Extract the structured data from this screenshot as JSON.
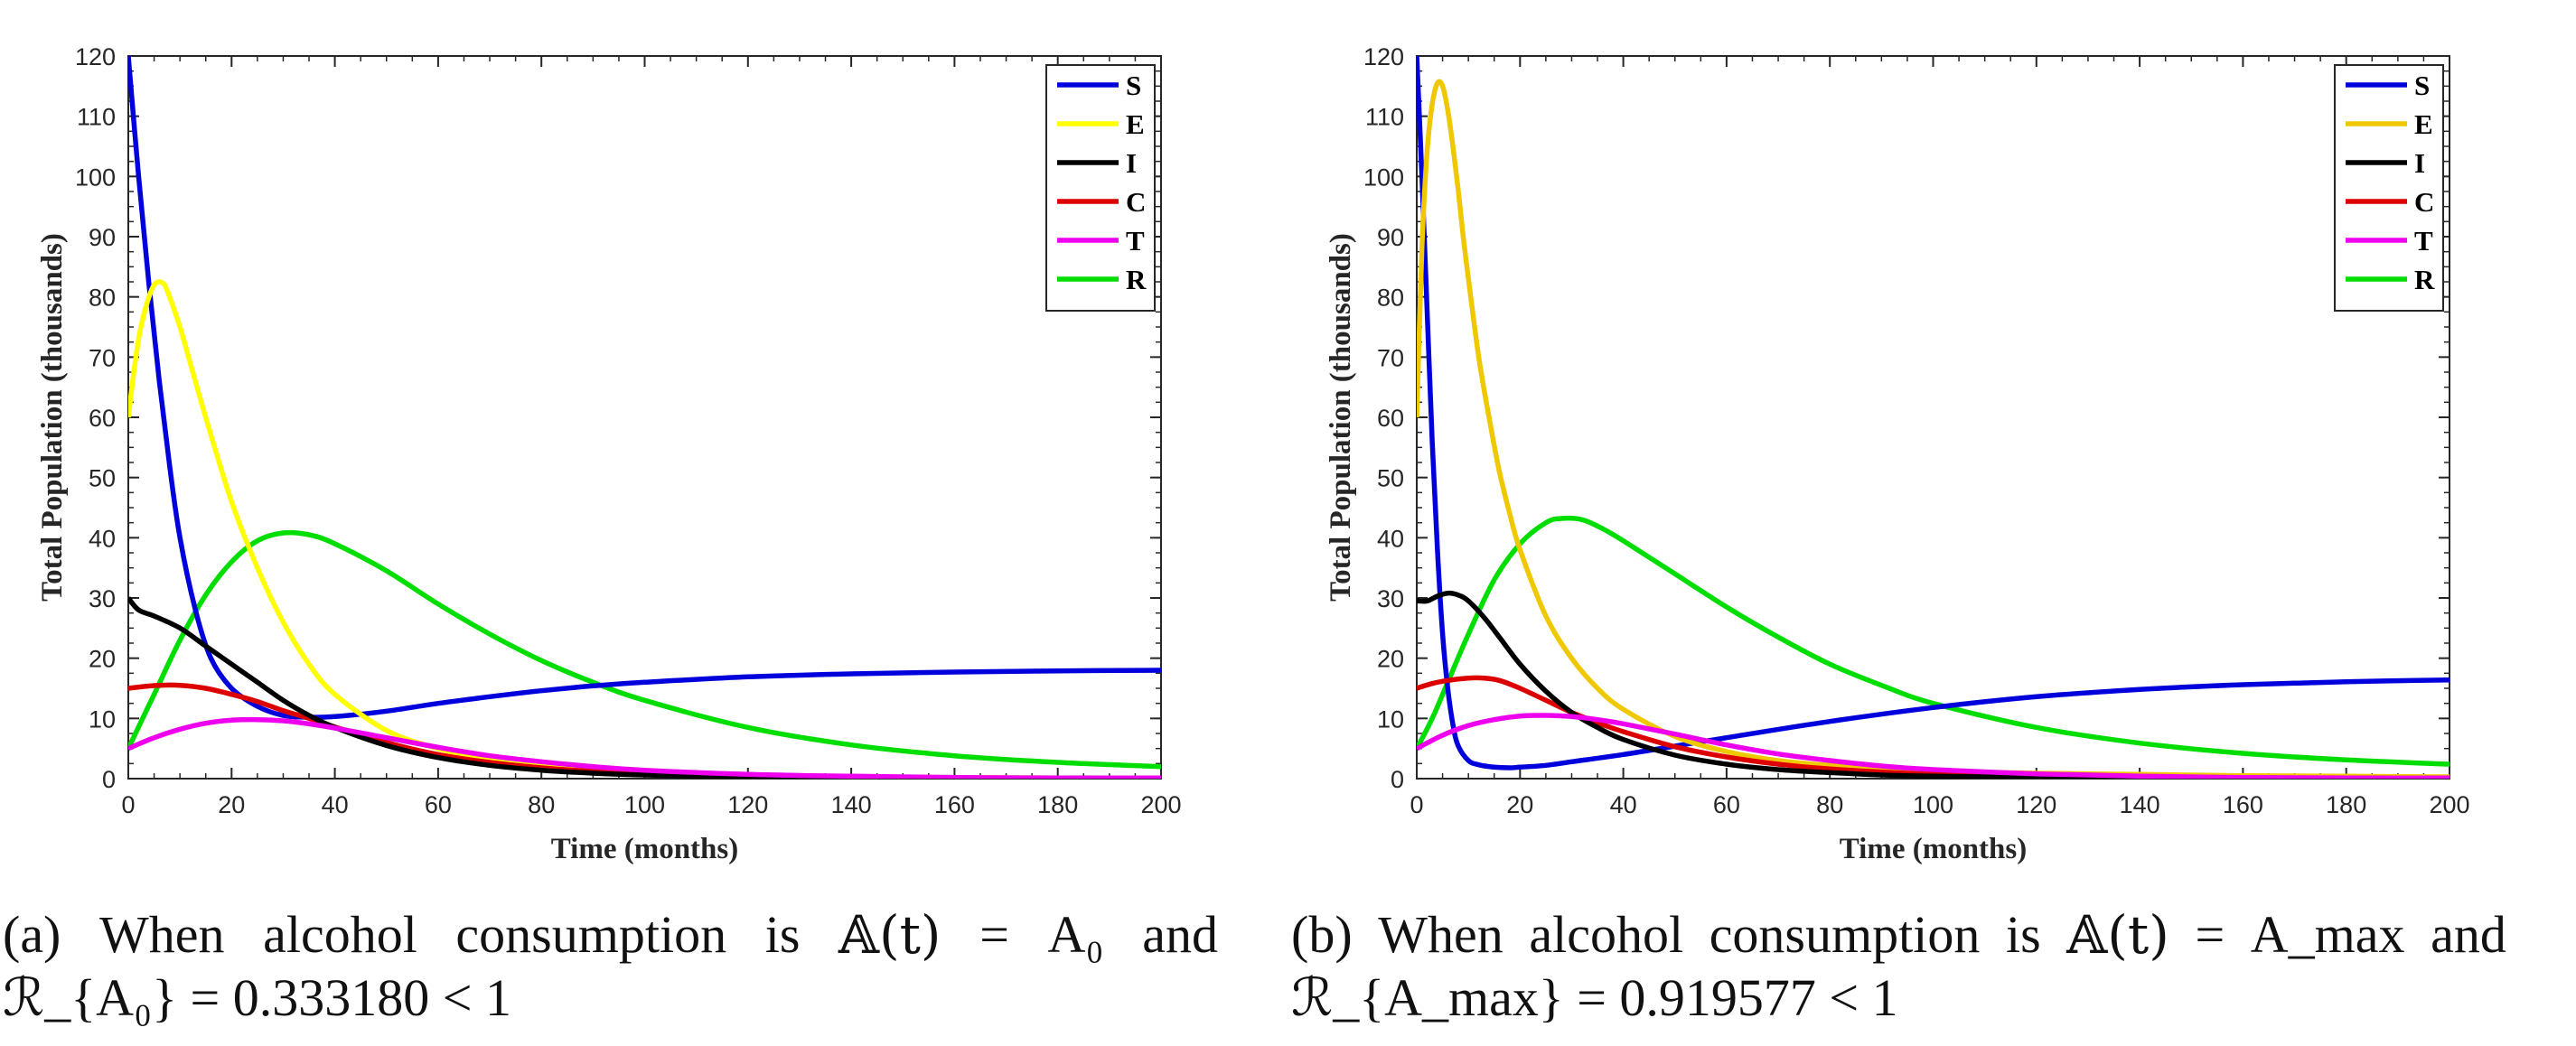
{
  "panels": [
    {
      "id": "a",
      "caption_prefix": "(a)",
      "caption_words": [
        "When",
        "alcohol",
        "consumption",
        "is",
        "𝔸(t)",
        "=",
        "A₀",
        "and"
      ],
      "caption_line2": "ℛ_{A₀} = 0.333180 < 1"
    },
    {
      "id": "b",
      "caption_prefix": "(b)",
      "caption_words": [
        "When",
        "alcohol",
        "consumption",
        "is",
        "𝔸(t)",
        "=",
        "A_max",
        "and"
      ],
      "caption_line2": "ℛ_{A_max} = 0.919577 < 1"
    }
  ],
  "chart_data": [
    {
      "type": "line",
      "xlabel": "Time (months)",
      "ylabel": "Total Population (thousands)",
      "xlim": [
        0,
        200
      ],
      "ylim": [
        0,
        120
      ],
      "xticks": [
        0,
        20,
        40,
        60,
        80,
        100,
        120,
        140,
        160,
        180,
        200
      ],
      "yticks": [
        0,
        10,
        20,
        30,
        40,
        50,
        60,
        70,
        80,
        90,
        100,
        110,
        120
      ],
      "grid": false,
      "legend_position": "top-right",
      "series": [
        {
          "name": "S",
          "color": "#0000dd",
          "x": [
            0,
            2,
            4,
            6,
            8,
            10,
            13,
            16,
            20,
            25,
            30,
            35,
            40,
            50,
            60,
            70,
            80,
            90,
            100,
            120,
            140,
            160,
            180,
            200
          ],
          "y": [
            120,
            100,
            82,
            66,
            52,
            40,
            28,
            20,
            15,
            12,
            10.5,
            10.2,
            10.3,
            11.2,
            12.5,
            13.6,
            14.6,
            15.4,
            16,
            16.9,
            17.4,
            17.7,
            17.9,
            18
          ]
        },
        {
          "name": "E",
          "color": "#ffff00",
          "x": [
            0,
            1,
            2,
            3,
            4,
            5,
            6,
            7,
            8,
            10,
            12,
            15,
            20,
            25,
            30,
            35,
            40,
            50,
            60,
            70,
            80,
            90,
            100,
            120,
            140,
            160,
            180,
            200
          ],
          "y": [
            60,
            67,
            73,
            77,
            80,
            82,
            82.5,
            82,
            80,
            75,
            69,
            60,
            46,
            35,
            26,
            19,
            14,
            8,
            5,
            3,
            2,
            1.3,
            0.9,
            0.5,
            0.3,
            0.2,
            0.1,
            0.1
          ]
        },
        {
          "name": "I",
          "color": "#000000",
          "x": [
            0,
            2,
            5,
            10,
            15,
            20,
            25,
            30,
            35,
            40,
            50,
            60,
            70,
            80,
            90,
            100,
            120,
            140,
            160,
            180,
            200
          ],
          "y": [
            30,
            28,
            27,
            25,
            22,
            19,
            16,
            13,
            10.5,
            8.5,
            5.5,
            3.5,
            2.2,
            1.4,
            0.9,
            0.6,
            0.3,
            0.2,
            0.1,
            0.1,
            0
          ]
        },
        {
          "name": "C",
          "color": "#dd0000",
          "x": [
            0,
            3,
            6,
            10,
            15,
            20,
            25,
            30,
            35,
            40,
            50,
            60,
            70,
            80,
            90,
            100,
            120,
            140,
            160,
            180,
            200
          ],
          "y": [
            15,
            15.3,
            15.5,
            15.5,
            15,
            14,
            12.8,
            11.3,
            10,
            8.6,
            6,
            4,
            2.7,
            1.8,
            1.2,
            0.8,
            0.4,
            0.2,
            0.1,
            0.1,
            0
          ]
        },
        {
          "name": "T",
          "color": "#ee00ee",
          "x": [
            0,
            5,
            10,
            15,
            20,
            25,
            30,
            35,
            40,
            50,
            60,
            70,
            80,
            90,
            100,
            120,
            140,
            160,
            180,
            200
          ],
          "y": [
            5,
            6.8,
            8.2,
            9.2,
            9.7,
            9.8,
            9.6,
            9.1,
            8.4,
            6.8,
            5.2,
            3.8,
            2.8,
            2,
            1.4,
            0.7,
            0.4,
            0.2,
            0.1,
            0.1
          ]
        },
        {
          "name": "R",
          "color": "#00dd00",
          "x": [
            0,
            5,
            10,
            15,
            20,
            25,
            30,
            35,
            40,
            50,
            60,
            70,
            80,
            90,
            100,
            120,
            140,
            160,
            180,
            200
          ],
          "y": [
            5,
            14,
            23,
            30.5,
            36,
            39.5,
            40.8,
            40.5,
            39,
            34.5,
            29,
            24,
            19.6,
            16,
            13,
            8.5,
            5.6,
            3.8,
            2.7,
            2
          ]
        }
      ]
    },
    {
      "type": "line",
      "xlabel": "Time (months)",
      "ylabel": "Total Population (thousands)",
      "xlim": [
        0,
        200
      ],
      "ylim": [
        0,
        120
      ],
      "xticks": [
        0,
        20,
        40,
        60,
        80,
        100,
        120,
        140,
        160,
        180,
        200
      ],
      "yticks": [
        0,
        10,
        20,
        30,
        40,
        50,
        60,
        70,
        80,
        90,
        100,
        110,
        120
      ],
      "grid": false,
      "legend_position": "top-right",
      "series": [
        {
          "name": "S",
          "color": "#0000dd",
          "x": [
            0,
            1,
            2,
            3,
            4,
            5,
            6,
            7,
            8,
            10,
            12,
            15,
            18,
            20,
            25,
            30,
            40,
            50,
            60,
            80,
            100,
            120,
            140,
            160,
            180,
            200
          ],
          "y": [
            120,
            100,
            78,
            56,
            38,
            24,
            15,
            9,
            5.5,
            3,
            2.3,
            1.9,
            1.8,
            1.9,
            2.2,
            2.8,
            4,
            5.4,
            6.8,
            9.5,
            11.8,
            13.6,
            14.8,
            15.6,
            16.1,
            16.4
          ]
        },
        {
          "name": "E",
          "color": "#f0c800",
          "x": [
            0,
            1,
            2,
            3,
            4,
            5,
            6,
            7,
            8,
            9,
            10,
            12,
            14,
            16,
            18,
            20,
            25,
            30,
            35,
            40,
            50,
            60,
            70,
            80,
            100,
            120,
            140,
            160,
            180,
            200
          ],
          "y": [
            60,
            88,
            104,
            112,
            115.5,
            115,
            111,
            105,
            98,
            90,
            83,
            70,
            60,
            51,
            44,
            38,
            27,
            20,
            15,
            11.5,
            7,
            4.5,
            3,
            2.2,
            1.3,
            0.9,
            0.7,
            0.5,
            0.4,
            0.3
          ]
        },
        {
          "name": "I",
          "color": "#000000",
          "x": [
            0,
            2,
            4,
            6,
            8,
            10,
            13,
            16,
            20,
            25,
            30,
            35,
            40,
            50,
            60,
            70,
            80,
            90,
            100,
            120,
            140,
            160,
            180,
            200
          ],
          "y": [
            29.5,
            29.5,
            30.3,
            30.8,
            30.5,
            29.5,
            26.8,
            23.5,
            19,
            14.5,
            11,
            8.5,
            6.5,
            3.9,
            2.4,
            1.5,
            1,
            0.6,
            0.4,
            0.2,
            0.1,
            0.1,
            0,
            0
          ]
        },
        {
          "name": "C",
          "color": "#dd0000",
          "x": [
            0,
            3,
            6,
            10,
            13,
            16,
            20,
            25,
            30,
            35,
            40,
            50,
            60,
            70,
            80,
            100,
            120,
            140,
            160,
            180,
            200
          ],
          "y": [
            15,
            15.8,
            16.3,
            16.7,
            16.7,
            16.3,
            15,
            13,
            11,
            9.3,
            7.8,
            5.3,
            3.6,
            2.4,
            1.6,
            0.7,
            0.3,
            0.2,
            0.1,
            0.1,
            0
          ]
        },
        {
          "name": "T",
          "color": "#ee00ee",
          "x": [
            0,
            5,
            10,
            15,
            20,
            25,
            30,
            35,
            40,
            50,
            60,
            70,
            80,
            90,
            100,
            120,
            140,
            160,
            180,
            200
          ],
          "y": [
            5,
            7.2,
            8.8,
            9.8,
            10.4,
            10.5,
            10.3,
            9.8,
            9.1,
            7.4,
            5.6,
            4.1,
            3,
            2.1,
            1.5,
            0.8,
            0.4,
            0.2,
            0.1,
            0.1
          ]
        },
        {
          "name": "R",
          "color": "#00dd00",
          "x": [
            0,
            3,
            6,
            10,
            15,
            20,
            25,
            28,
            32,
            36,
            40,
            50,
            60,
            70,
            80,
            90,
            100,
            120,
            140,
            160,
            180,
            200
          ],
          "y": [
            5,
            10,
            16,
            24,
            33,
            39,
            42.5,
            43.2,
            43,
            41.5,
            39.5,
            34,
            28.5,
            23.5,
            19,
            15.5,
            12.5,
            8.5,
            5.9,
            4.2,
            3.1,
            2.4
          ]
        }
      ]
    }
  ]
}
